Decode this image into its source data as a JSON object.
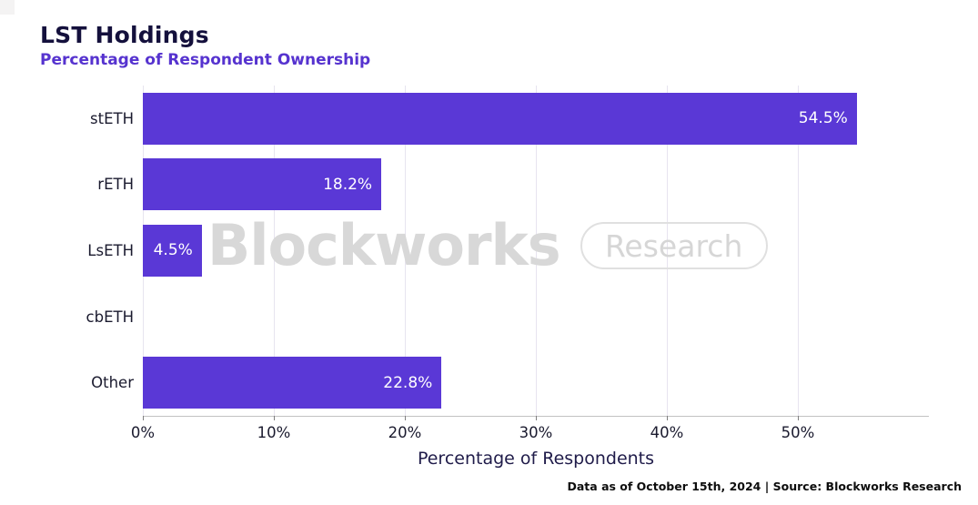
{
  "header": {
    "title": "LST Holdings",
    "subtitle": "Percentage of Respondent Ownership"
  },
  "watermark": {
    "brand": "Blockworks",
    "badge": "Research"
  },
  "footer": {
    "text": "Data as of October 15th, 2024 | Source: Blockworks Research"
  },
  "colors": {
    "bar": "#5a38d6",
    "title": "#14103c",
    "subtitle": "#5633cf",
    "grid": "#e7e4ef",
    "axis_line": "#c2c2c2",
    "value_label": "#ffffff",
    "tick_label": "#1a1a2e",
    "watermark": "#d8d8d8"
  },
  "chart_data": {
    "type": "bar",
    "orientation": "horizontal",
    "title": "LST Holdings",
    "subtitle": "Percentage of Respondent Ownership",
    "categories": [
      "stETH",
      "rETH",
      "LsETH",
      "cbETH",
      "Other"
    ],
    "values": [
      54.5,
      18.2,
      4.5,
      0.0,
      22.8
    ],
    "value_labels": [
      "54.5%",
      "18.2%",
      "4.5%",
      "",
      "22.8%"
    ],
    "xlabel": "Percentage of Respondents",
    "ylabel": "",
    "xlim": [
      0,
      60
    ],
    "xticks": [
      0,
      10,
      20,
      30,
      40,
      50
    ],
    "xtick_labels": [
      "0%",
      "10%",
      "20%",
      "30%",
      "40%",
      "50%"
    ],
    "grid": true,
    "legend": false
  }
}
